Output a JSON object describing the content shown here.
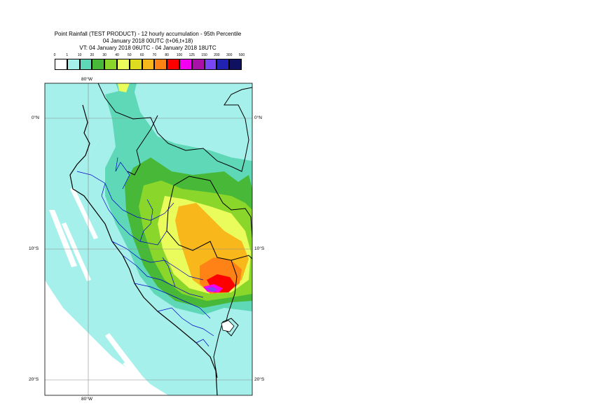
{
  "title": {
    "line1": "Point Rainfall (TEST PRODUCT) - 12 hourly accumulation - 95th Percentile",
    "line2": "04 January 2018 00UTC (t+06,t+18)",
    "line3": "VT: 04 January 2018 06UTC - 04 January 2018 18UTC"
  },
  "colorbar": {
    "ticks": [
      "0",
      "1",
      "10",
      "20",
      "30",
      "40",
      "50",
      "60",
      "70",
      "80",
      "100",
      "125",
      "150",
      "200",
      "300",
      "500"
    ],
    "colors": [
      "#ffffff",
      "#a6f0ec",
      "#5fd8b8",
      "#47b838",
      "#8ad62a",
      "#eafc5c",
      "#dcdc20",
      "#f8b81c",
      "#fe8216",
      "#fe0000",
      "#f200f2",
      "#a810a8",
      "#7846f4",
      "#2222b2",
      "#101060"
    ]
  },
  "map": {
    "colors": {
      "ocean_band": "#a6f0ec",
      "land_base": "#a6f0ec",
      "green_dark": "#5fd8b8",
      "green_med": "#47b838",
      "yellowgreen": "#8ad62a",
      "yellow": "#eafc5c",
      "orange": "#f8b81c",
      "dark_orange": "#fe8216",
      "red": "#fe0000",
      "magenta": "#f200f2",
      "violet": "#7846f4"
    },
    "labels": {
      "top_lon": "80°W",
      "bottom_lon": "80°W",
      "left_0": "0°N",
      "right_0": "0°N",
      "left_10": "10°S",
      "right_10": "10°S",
      "left_20": "20°S",
      "right_20": "20°S"
    }
  }
}
